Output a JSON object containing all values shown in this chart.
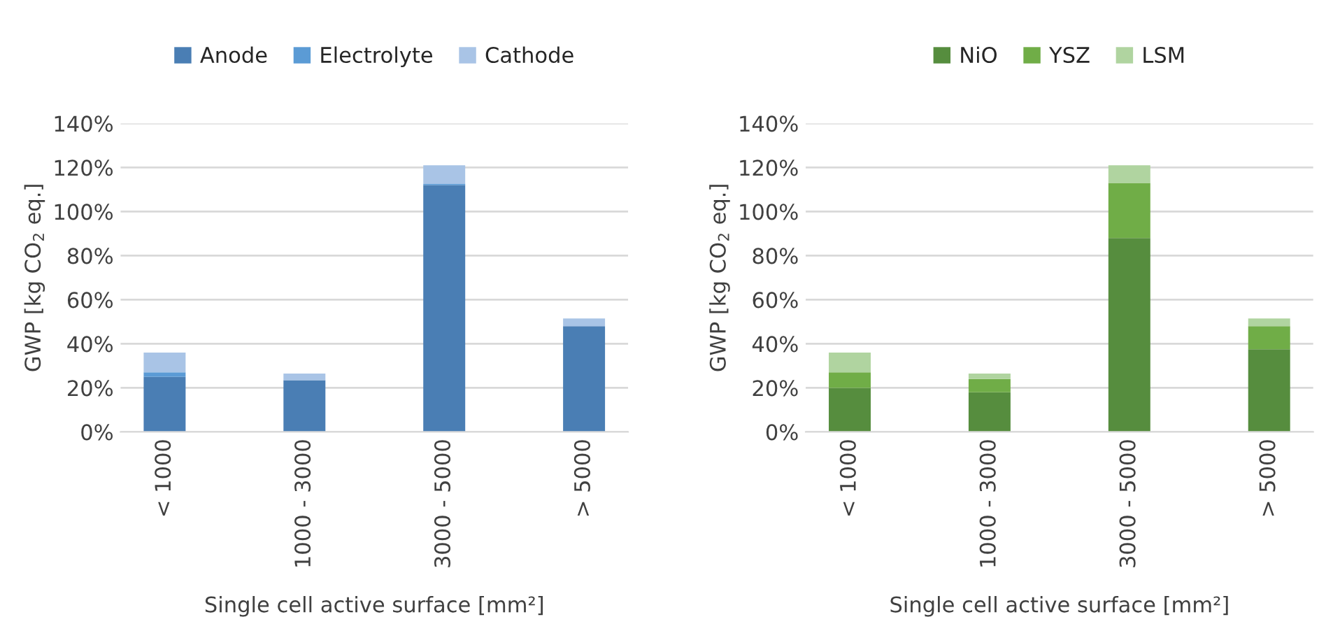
{
  "chart_data": [
    {
      "type": "bar",
      "stacked": true,
      "categories": [
        "< 1000",
        "1000 - 3000",
        "3000 - 5000",
        "> 5000"
      ],
      "xlabel": "Single cell active surface [mm²]",
      "ylabel": "GWP [kg CO$_{2}$ eq.]",
      "ylim": [
        0,
        140
      ],
      "yticks": [
        {
          "value": 0,
          "label": "0%"
        },
        {
          "value": 20,
          "label": "20%"
        },
        {
          "value": 40,
          "label": "40%"
        },
        {
          "value": 60,
          "label": "60%"
        },
        {
          "value": 80,
          "label": "80%"
        },
        {
          "value": 100,
          "label": "100%"
        },
        {
          "value": 120,
          "label": "120%"
        },
        {
          "value": 140,
          "label": "140%"
        }
      ],
      "grid": "y",
      "legend": "top",
      "series": [
        {
          "name": "Anode",
          "color": "#4a7eb4",
          "values": [
            25,
            23.5,
            112,
            48
          ]
        },
        {
          "name": "Electrolyte",
          "color": "#5b9bd5",
          "values": [
            2,
            null,
            0.5,
            null
          ]
        },
        {
          "name": "Cathode",
          "color": "#a9c4e6",
          "values": [
            9,
            3,
            8.5,
            3.5
          ]
        }
      ]
    },
    {
      "type": "bar",
      "stacked": true,
      "categories": [
        "< 1000",
        "1000 - 3000",
        "3000 - 5000",
        "> 5000"
      ],
      "xlabel": "Single cell active surface [mm²]",
      "ylabel": "GWP [kg CO$_{2}$ eq.]",
      "ylim": [
        0,
        140
      ],
      "yticks": [
        {
          "value": 0,
          "label": "0%"
        },
        {
          "value": 20,
          "label": "20%"
        },
        {
          "value": 40,
          "label": "40%"
        },
        {
          "value": 60,
          "label": "60%"
        },
        {
          "value": 80,
          "label": "80%"
        },
        {
          "value": 100,
          "label": "100%"
        },
        {
          "value": 120,
          "label": "120%"
        },
        {
          "value": 140,
          "label": "140%"
        }
      ],
      "grid": "y",
      "legend": "top",
      "series": [
        {
          "name": "NiO",
          "color": "#568d3e",
          "values": [
            20,
            18,
            88,
            37.5
          ]
        },
        {
          "name": "YSZ",
          "color": "#70ad47",
          "values": [
            7,
            6,
            25,
            10.5
          ]
        },
        {
          "name": "LSM",
          "color": "#b0d4a0",
          "values": [
            9,
            2.5,
            8,
            3.5
          ]
        }
      ]
    }
  ]
}
